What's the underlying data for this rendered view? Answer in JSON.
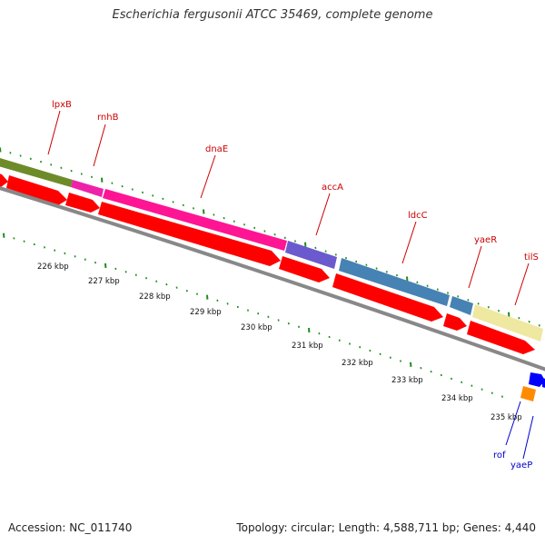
{
  "title": "Escherichia fergusonii ATCC 35469, complete genome",
  "footer": {
    "accession": "Accession: NC_011740",
    "summary": "Topology: circular; Length: 4,588,711 bp; Genes: 4,440"
  },
  "colors": {
    "cds_arrow": "#ff0000",
    "backbone": "#888888",
    "tick_green": "#1e8c1e",
    "label_red": "#cc0000",
    "label_blue": "#0000cc"
  },
  "scale_labels": [
    "226 kbp",
    "227 kbp",
    "228 kbp",
    "229 kbp",
    "230 kbp",
    "231 kbp",
    "232 kbp",
    "233 kbp",
    "234 kbp",
    "235 kbp"
  ],
  "genes_top": [
    {
      "name": "lpxB",
      "color": "#6e8b2a"
    },
    {
      "name": "rnhB",
      "color": "#ee22aa"
    },
    {
      "name": "dnaE",
      "color": "#ff1493"
    },
    {
      "name": "accA",
      "color": "#6a5acd"
    },
    {
      "name": "ldcC",
      "color": "#4682b4"
    },
    {
      "name": "yaeR",
      "color": "#4682b4"
    },
    {
      "name": "tilS",
      "color": "#eee8a0"
    }
  ],
  "genes_bottom": [
    {
      "name": "rof",
      "color": "#ff8c00"
    },
    {
      "name": "yaeP",
      "color": "#0000ff"
    }
  ]
}
